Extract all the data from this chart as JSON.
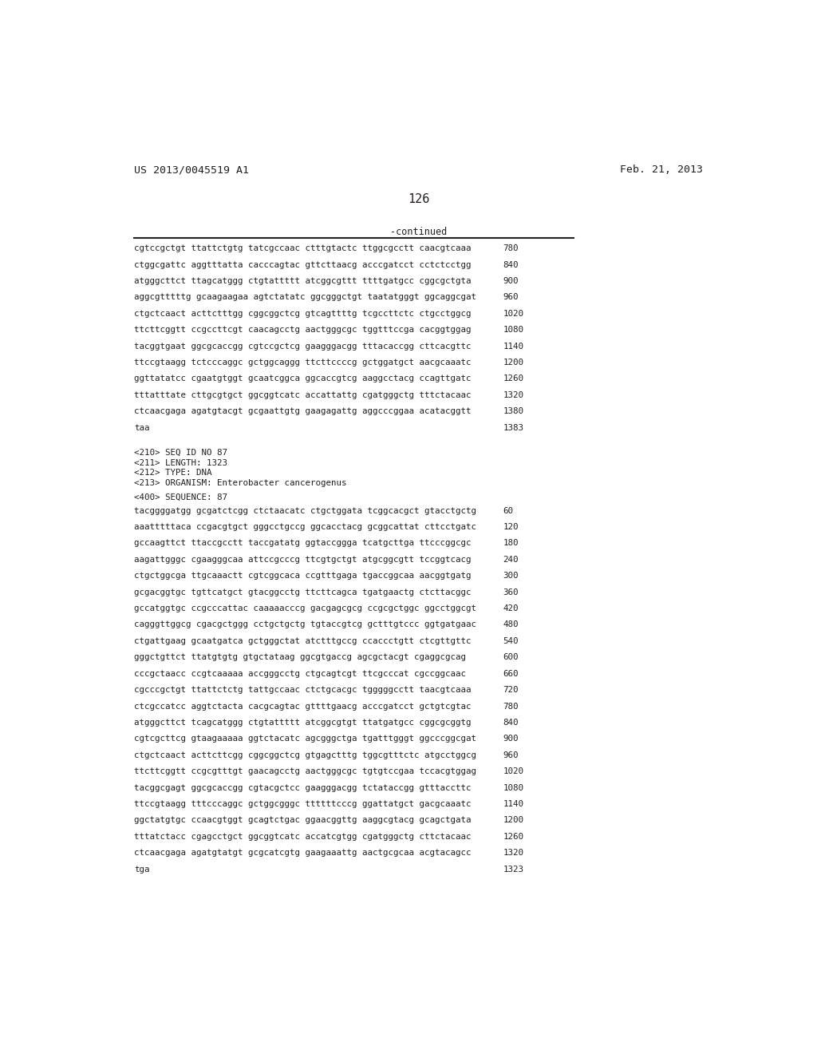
{
  "header_left": "US 2013/0045519 A1",
  "header_right": "Feb. 21, 2013",
  "page_number": "126",
  "continued_label": "-continued",
  "background_color": "#ffffff",
  "text_color": "#231f20",
  "header_fontsize": 9.5,
  "page_fontsize": 11,
  "mono_fontsize": 7.8,
  "sequence_lines_top": [
    [
      "cgtccgctgt ttattctgtg tatcgccaac ctttgtactc ttggcgcctt caacgtcaaa",
      "780"
    ],
    [
      "ctggcgattc aggtttatta cacccagtac gttcttaacg acccgatcct cctctcctgg",
      "840"
    ],
    [
      "atgggcttct ttagcatggg ctgtattttt atcggcgttt ttttgatgcc cggcgctgta",
      "900"
    ],
    [
      "aggcgtttttg gcaagaagaa agtctatatc ggcgggctgt taatatgggt ggcaggcgat",
      "960"
    ],
    [
      "ctgctcaact acttctttgg cggcggctcg gtcagttttg tcgccttctc ctgcctggcg",
      "1020"
    ],
    [
      "ttcttcggtt ccgccttcgt caacagcctg aactgggcgc tggtttccga cacggtggag",
      "1080"
    ],
    [
      "tacggtgaat ggcgcaccgg cgtccgctcg gaagggacgg tttacaccgg cttcacgttc",
      "1140"
    ],
    [
      "ttccgtaagg tctcccaggc gctggcaggg ttcttccccg gctggatgct aacgcaaatc",
      "1200"
    ],
    [
      "ggttatatcc cgaatgtggt gcaatcggca ggcaccgtcg aaggcctacg ccagttgatc",
      "1260"
    ],
    [
      "tttatttate cttgcgtgct ggcggtcatc accattattg cgatgggctg tttctacaac",
      "1320"
    ],
    [
      "ctcaacgaga agatgtacgt gcgaattgtg gaagagattg aggcccggaa acatacggtt",
      "1380"
    ],
    [
      "taa",
      "1383"
    ]
  ],
  "metadata_lines": [
    "<210> SEQ ID NO 87",
    "<211> LENGTH: 1323",
    "<212> TYPE: DNA",
    "<213> ORGANISM: Enterobacter cancerogenus"
  ],
  "sequence_label": "<400> SEQUENCE: 87",
  "sequence_lines_bottom": [
    [
      "tacggggatgg gcgatctcgg ctctaacatc ctgctggata tcggcacgct gtacctgctg",
      "60"
    ],
    [
      "aaatttttaca ccgacgtgct gggcctgccg ggcacctacg gcggcattat cttcctgatc",
      "120"
    ],
    [
      "gccaagttct ttaccgcctt taccgatatg ggtaccggga tcatgcttga ttcccggcgc",
      "180"
    ],
    [
      "aagattgggc cgaagggcaa attccgcccg ttcgtgctgt atgcggcgtt tccggtcacg",
      "240"
    ],
    [
      "ctgctggcga ttgcaaactt cgtcggcaca ccgtttgaga tgaccggcaa aacggtgatg",
      "300"
    ],
    [
      "gcgacggtgc tgttcatgct gtacggcctg ttcttcagca tgatgaactg ctcttacggc",
      "360"
    ],
    [
      "gccatggtgc ccgcccattac caaaaacccg gacgagcgcg ccgcgctggc ggcctggcgt",
      "420"
    ],
    [
      "cagggttggcg cgacgctggg cctgctgctg tgtaccgtcg gctttgtccc ggtgatgaac",
      "480"
    ],
    [
      "ctgattgaag gcaatgatca gctgggctat atctttgccg ccaccctgtt ctcgttgttc",
      "540"
    ],
    [
      "gggctgttct ttatgtgtg gtgctataag ggcgtgaccg agcgctacgt cgaggcgcag",
      "600"
    ],
    [
      "cccgctaacc ccgtcaaaaa accgggcctg ctgcagtcgt ttcgcccat cgccggcaac",
      "660"
    ],
    [
      "cgcccgctgt ttattctctg tattgccaac ctctgcacgc tgggggcctt taacgtcaaa",
      "720"
    ],
    [
      "ctcgccatcc aggtctacta cacgcagtac gttttgaacg acccgatcct gctgtcgtac",
      "780"
    ],
    [
      "atgggcttct tcagcatggg ctgtattttt atcggcgtgt ttatgatgcc cggcgcggtg",
      "840"
    ],
    [
      "cgtcgcttcg gtaagaaaaa ggtctacatc agcgggctga tgatttgggt ggcccggcgat",
      "900"
    ],
    [
      "ctgctcaact acttcttcgg cggcggctcg gtgagctttg tggcgtttctc atgcctggcg",
      "960"
    ],
    [
      "ttcttcggtt ccgcgtttgt gaacagcctg aactgggcgc tgtgtccgaa tccacgtggag",
      "1020"
    ],
    [
      "tacggcgagt ggcgcaccgg cgtacgctcc gaagggacgg tctataccgg gtttaccttc",
      "1080"
    ],
    [
      "ttccgtaagg tttcccaggc gctggcgggc ttttttcccg ggattatgct gacgcaaatc",
      "1140"
    ],
    [
      "ggctatgtgc ccaacgtggt gcagtctgac ggaacggttg aaggcgtacg gcagctgata",
      "1200"
    ],
    [
      "tttatctacc cgagcctgct ggcggtcatc accatcgtgg cgatgggctg cttctacaac",
      "1260"
    ],
    [
      "ctcaacgaga agatgtatgt gcgcatcgtg gaagaaattg aactgcgcaa acgtacagcc",
      "1320"
    ],
    [
      "tga",
      "1323"
    ]
  ]
}
